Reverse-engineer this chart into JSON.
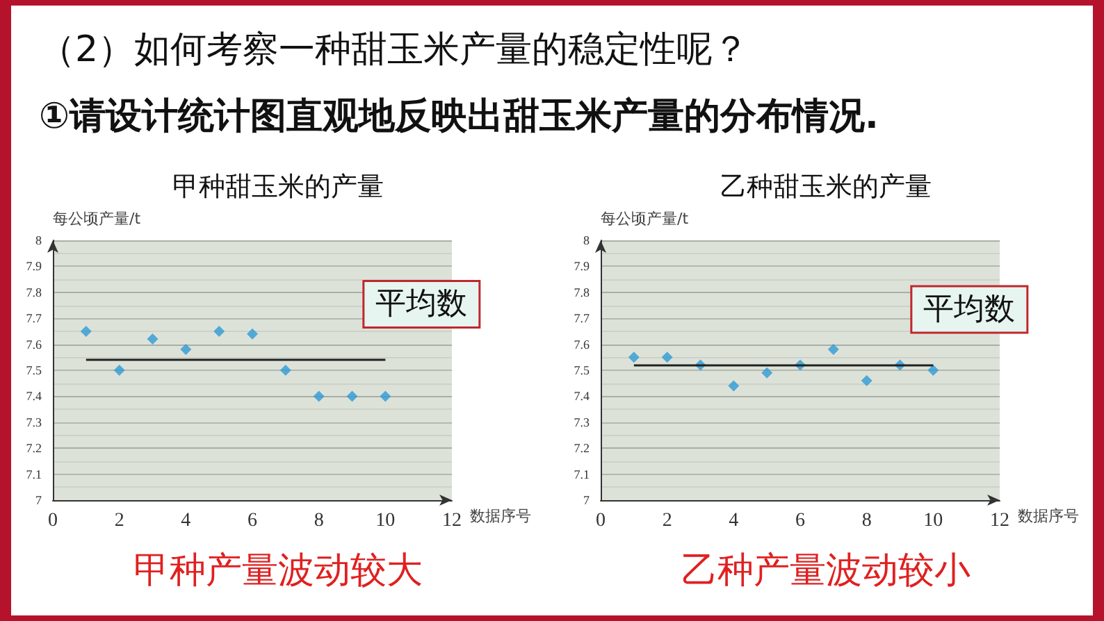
{
  "chart_data": [
    {
      "type": "scatter",
      "title": "甲种甜玉米的产量",
      "xlabel": "数据序号",
      "ylabel": "每公顷产量/t",
      "annotations": [
        "（2）如何考察一种甜玉米产量的稳定性呢？",
        "①请设计统计图直观地反映出甜玉米产量的分布情况.",
        "甲种产量波动较大"
      ],
      "x": [
        1,
        2,
        3,
        4,
        5,
        6,
        7,
        8,
        9,
        10
      ],
      "series": [
        {
          "color": "#2e9bd6",
          "values": [
            7.65,
            7.5,
            7.62,
            7.58,
            7.65,
            7.64,
            7.5,
            7.4,
            7.4,
            7.4
          ]
        }
      ],
      "xlim": [
        0,
        12
      ],
      "xticks": [
        0,
        2,
        4,
        6,
        8,
        10,
        12
      ],
      "ylim": [
        7,
        8
      ],
      "yticks": [
        7,
        7.1,
        7.2,
        7.3,
        7.4,
        7.5,
        7.6,
        7.7,
        7.8,
        7.9,
        8
      ],
      "grid": "y",
      "marker": "diamond",
      "ref_lines": [
        {
          "axis": "y",
          "value": 7.54,
          "label": "平均数",
          "color": "#222222"
        }
      ]
    },
    {
      "type": "scatter",
      "title": "乙种甜玉米的产量",
      "xlabel": "数据序号",
      "ylabel": "每公顷产量/t",
      "annotations": [
        "乙种产量波动较小"
      ],
      "x": [
        1,
        2,
        3,
        4,
        5,
        6,
        7,
        8,
        9,
        10
      ],
      "series": [
        {
          "color": "#2e9bd6",
          "values": [
            7.55,
            7.55,
            7.52,
            7.44,
            7.49,
            7.52,
            7.58,
            7.46,
            7.52,
            7.5
          ]
        }
      ],
      "xlim": [
        0,
        12
      ],
      "xticks": [
        0,
        2,
        4,
        6,
        8,
        10,
        12
      ],
      "ylim": [
        7,
        8
      ],
      "yticks": [
        7,
        7.1,
        7.2,
        7.3,
        7.4,
        7.5,
        7.6,
        7.7,
        7.8,
        7.9,
        8
      ],
      "grid": "y",
      "marker": "diamond",
      "ref_lines": [
        {
          "axis": "y",
          "value": 7.52,
          "label": "平均数",
          "color": "#222222"
        }
      ]
    }
  ]
}
